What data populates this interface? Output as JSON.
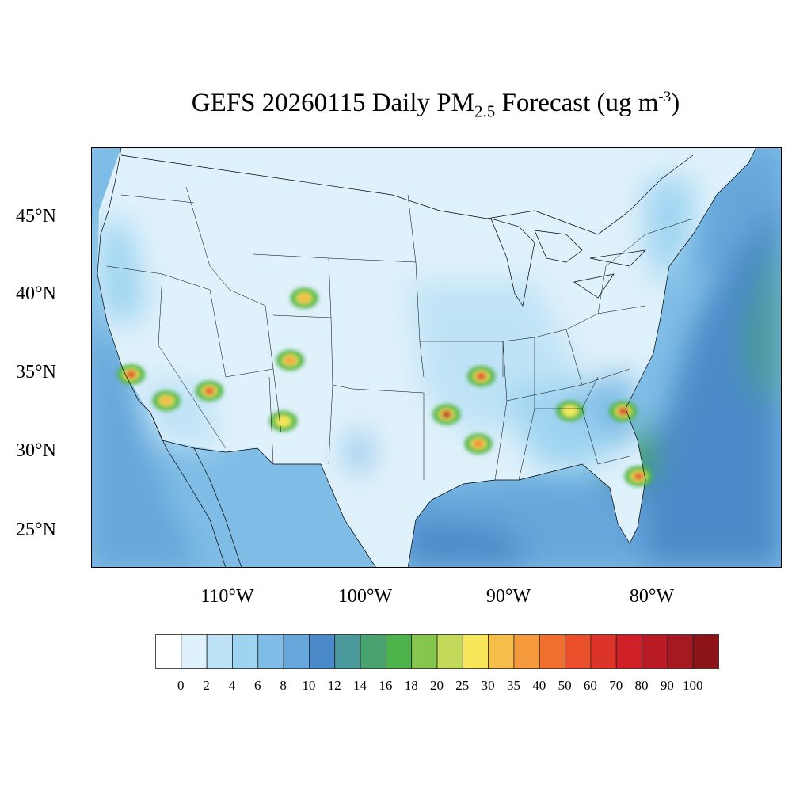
{
  "title": {
    "prefix": "GEFS 20260115 Daily PM",
    "subscript": "2.5",
    "middle": " Forecast (ug m",
    "superscript": "-3",
    "suffix": ")"
  },
  "map": {
    "projection": "lambert-conformal",
    "region": "Continental United States",
    "lat_labels": [
      "45°N",
      "40°N",
      "35°N",
      "30°N",
      "25°N"
    ],
    "lon_labels": [
      "110°W",
      "100°W",
      "90°W",
      "80°W"
    ]
  },
  "colorbar": {
    "levels": [
      "0",
      "2",
      "4",
      "6",
      "8",
      "10",
      "12",
      "14",
      "16",
      "18",
      "20",
      "25",
      "30",
      "35",
      "40",
      "50",
      "60",
      "70",
      "80",
      "90",
      "100"
    ],
    "colors": [
      "#ffffff",
      "#dff1fb",
      "#bfe3f6",
      "#9fd4f1",
      "#80bde6",
      "#66a6da",
      "#4b8ac8",
      "#4a9a9c",
      "#48a36e",
      "#4cb24a",
      "#86c54e",
      "#c3d95a",
      "#f7e65a",
      "#f7bd4a",
      "#f59a3c",
      "#f16f2e",
      "#e84f2a",
      "#dc3428",
      "#cf2028",
      "#b81b24",
      "#a51a21",
      "#8a1418"
    ]
  },
  "hotspots": [
    {
      "name": "southern-california",
      "lat": 34.05,
      "lon": -118.2,
      "value": 70
    },
    {
      "name": "phoenix",
      "lat": 33.45,
      "lon": -112.05,
      "value": 60
    },
    {
      "name": "mexicali",
      "lat": 32.6,
      "lon": -115.4,
      "value": 30
    },
    {
      "name": "el-paso",
      "lat": 31.8,
      "lon": -106.45,
      "value": 25
    },
    {
      "name": "colorado-front-range",
      "lat": 39.7,
      "lon": -104.9,
      "value": 30
    },
    {
      "name": "northern-new-mexico",
      "lat": 35.7,
      "lon": -105.95,
      "value": 35
    },
    {
      "name": "east-texas",
      "lat": 32.4,
      "lon": -94.7,
      "value": 100
    },
    {
      "name": "arkansas",
      "lat": 34.8,
      "lon": -92.3,
      "value": 70
    },
    {
      "name": "louisiana",
      "lat": 30.5,
      "lon": -92.5,
      "value": 40
    },
    {
      "name": "georgia",
      "lat": 32.2,
      "lon": -82.8,
      "value": 80
    },
    {
      "name": "central-florida",
      "lat": 28.0,
      "lon": -81.8,
      "value": 60
    },
    {
      "name": "alabama",
      "lat": 32.4,
      "lon": -86.3,
      "value": 25
    }
  ]
}
